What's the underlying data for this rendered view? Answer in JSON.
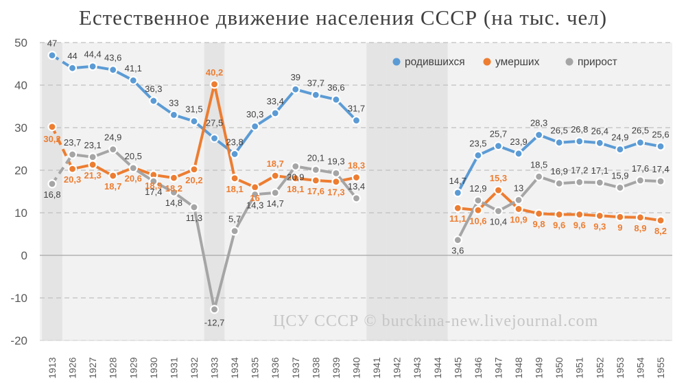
{
  "chart_data": {
    "type": "line",
    "title": "Естественное движение населения СССР (на тыс. чел)",
    "watermark": "ЦСУ СССР © burckina-new.livejournal.com",
    "ylim": [
      -20,
      50
    ],
    "yticks": [
      "-20",
      "-10",
      "0",
      "10",
      "20",
      "30",
      "40",
      "50"
    ],
    "grid": true,
    "legend_position": "top-right",
    "x": [
      "1913",
      "1926",
      "1927",
      "1928",
      "1929",
      "1930",
      "1931",
      "1932",
      "1933",
      "1934",
      "1935",
      "1936",
      "1937",
      "1938",
      "1939",
      "1940",
      "1941",
      "1942",
      "1943",
      "1944",
      "1945",
      "1946",
      "1947",
      "1948",
      "1949",
      "1950",
      "1951",
      "1952",
      "1953",
      "1954",
      "1955"
    ],
    "shaded_x": [
      "1913",
      "1933",
      "1941",
      "1942",
      "1943",
      "1944"
    ],
    "series": [
      {
        "name": "родившихся",
        "color": "#5B9BD5",
        "values": [
          47,
          44,
          44.4,
          43.6,
          41.1,
          36.3,
          33,
          31.5,
          27.5,
          23.8,
          30.3,
          33.4,
          39,
          37.7,
          36.6,
          31.7,
          null,
          null,
          null,
          null,
          14.7,
          23.5,
          25.7,
          23.9,
          28.3,
          26.5,
          26.8,
          26.4,
          24.9,
          26.5,
          25.6
        ],
        "labels": [
          "47",
          "44",
          "44,4",
          "43,6",
          "41,1",
          "36,3",
          "33",
          "31,5",
          "27,5",
          "23,8",
          "30,3",
          "33,4",
          "39",
          "37,7",
          "36,6",
          "31,7",
          "",
          "",
          "",
          "",
          "14,7",
          "23,5",
          "25,7",
          "23,9",
          "28,3",
          "26,5",
          "26,8",
          "26,4",
          "24,9",
          "26,5",
          "25,6"
        ]
      },
      {
        "name": "умерших",
        "color": "#ED7D31",
        "values": [
          30.2,
          20.3,
          21.3,
          18.7,
          20.6,
          18.9,
          18.2,
          20.2,
          40.2,
          18.1,
          16,
          18.7,
          18.1,
          17.6,
          17.3,
          18.3,
          null,
          null,
          null,
          null,
          11.1,
          10.6,
          15.3,
          10.9,
          9.8,
          9.6,
          9.6,
          9.3,
          9,
          8.9,
          8.2
        ],
        "labels": [
          "30,2",
          "20,3",
          "21,3",
          "18,7",
          "20,6",
          "18,9",
          "18,2",
          "20,2",
          "40,2",
          "18,1",
          "16",
          "18,7",
          "18,1",
          "17,6",
          "17,3",
          "18,3",
          "",
          "",
          "",
          "",
          "11,1",
          "10,6",
          "15,3",
          "10,9",
          "9,8",
          "9,6",
          "9,6",
          "9,3",
          "9",
          "8,9",
          "8,2"
        ]
      },
      {
        "name": "прирост",
        "color": "#A5A5A5",
        "values": [
          16.8,
          23.7,
          23.1,
          24.9,
          20.5,
          17.4,
          14.8,
          11.3,
          -12.7,
          5.7,
          14.3,
          14.7,
          20.9,
          20.1,
          19.3,
          13.4,
          null,
          null,
          null,
          null,
          3.6,
          12.9,
          10.4,
          13,
          18.5,
          16.9,
          17.2,
          17.1,
          15.9,
          17.6,
          17.4
        ],
        "labels": [
          "16,8",
          "23,7",
          "23,1",
          "24,9",
          "20,5",
          "17,4",
          "14,8",
          "11,3",
          "-12,7",
          "5,7",
          "14,3",
          "14,7",
          "20,9",
          "20,1",
          "19,3",
          "13,4",
          "",
          "",
          "",
          "",
          "3,6",
          "12,9",
          "10,4",
          "13",
          "18,5",
          "16,9",
          "17,2",
          "17,1",
          "15,9",
          "17,6",
          "17,4"
        ]
      }
    ]
  }
}
